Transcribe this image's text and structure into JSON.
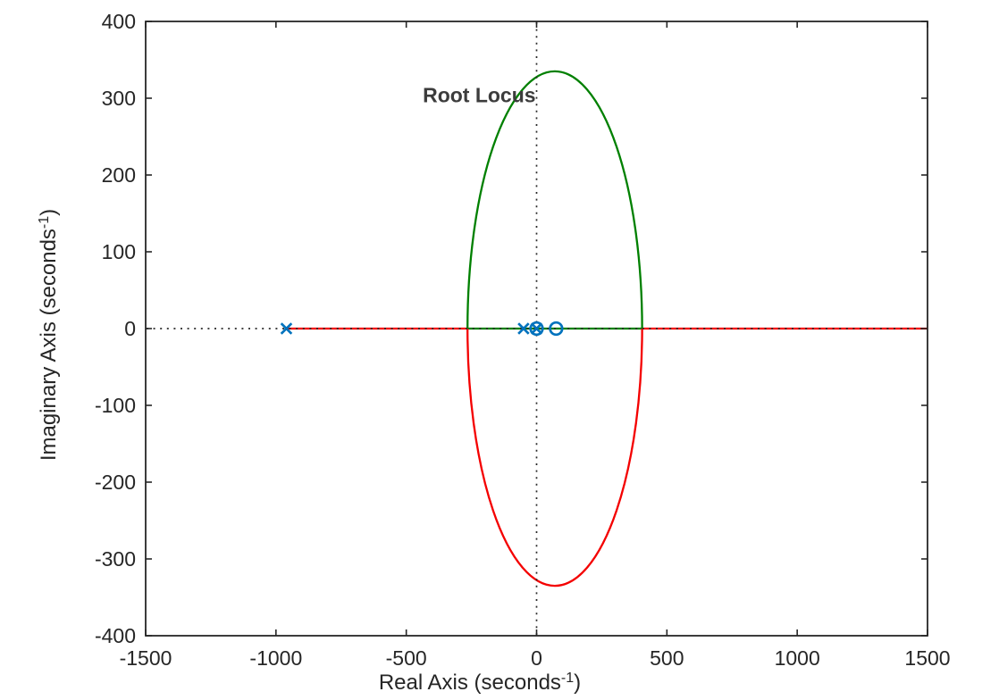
{
  "figure": {
    "background": "#ffffff",
    "axes_color": "#262626",
    "text_color": "#262626"
  },
  "chart_data": {
    "type": "line",
    "subtype": "root-locus",
    "title": "Root Locus",
    "title_color": "#3c3c3c",
    "title_position": {
      "x": -220,
      "y": 305
    },
    "xlabel": {
      "base": "Real Axis (seconds",
      "sup": "-1",
      "close": ")"
    },
    "ylabel": {
      "base": "Imaginary Axis (seconds",
      "sup": "-1",
      "close": ")"
    },
    "xlim": [
      -1500,
      1500
    ],
    "ylim": [
      -400,
      400
    ],
    "xticks": [
      -1500,
      -1000,
      -500,
      0,
      500,
      1000,
      1500
    ],
    "yticks": [
      -400,
      -300,
      -200,
      -100,
      0,
      100,
      200,
      300,
      400
    ],
    "grid": false,
    "box": true,
    "legend": null,
    "reference_lines": [
      {
        "name": "imaginary-axis-dotted-line",
        "orientation": "vertical",
        "at": 0,
        "color": "#2a2a2a",
        "style": "dotted"
      },
      {
        "name": "real-axis-dotted-line",
        "orientation": "horizontal",
        "at": 0,
        "color": "#2a2a2a",
        "style": "dotted"
      }
    ],
    "marker_color": "#0072bd",
    "poles": [
      {
        "real": -960,
        "imag": 0
      },
      {
        "real": -50,
        "imag": 0
      },
      {
        "real": 0,
        "imag": 0
      }
    ],
    "zeros": [
      {
        "real": 0,
        "imag": 0
      },
      {
        "real": 75,
        "imag": 0
      }
    ],
    "breakaway_points": [
      -265,
      405
    ],
    "branches": [
      {
        "name": "real-axis-left-branch",
        "color": "#f40000",
        "kind": "segment",
        "x1": -960,
        "x2": -265,
        "y": 0
      },
      {
        "name": "real-axis-middle-branch",
        "color": "#008000",
        "kind": "segment",
        "x1": -265,
        "x2": 405,
        "y": 0
      },
      {
        "name": "real-axis-right-branch",
        "color": "#f40000",
        "kind": "segment",
        "x1": 405,
        "x2": 1500,
        "y": 0
      },
      {
        "name": "upper-complex-branch",
        "color": "#008000",
        "kind": "half_ellipse",
        "x1": -265,
        "x2": 405,
        "peak_imag": 335
      },
      {
        "name": "lower-complex-branch",
        "color": "#f40000",
        "kind": "half_ellipse",
        "x1": -265,
        "x2": 405,
        "peak_imag": -335
      }
    ]
  }
}
